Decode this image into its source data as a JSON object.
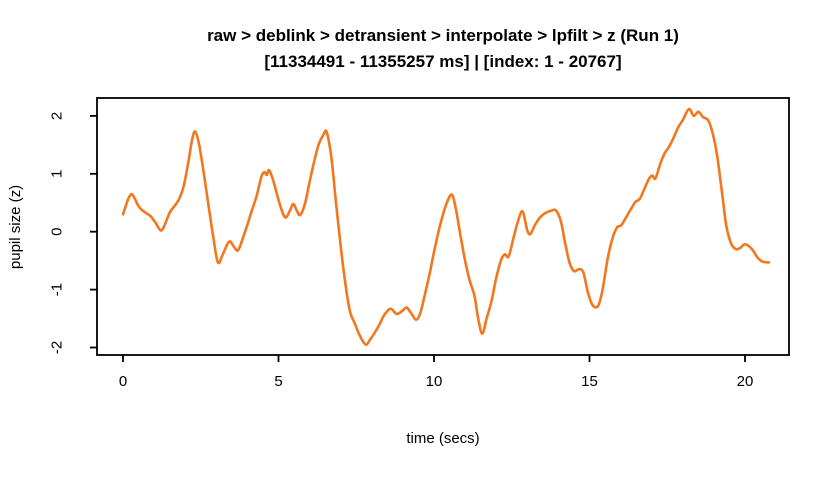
{
  "chart_data": {
    "type": "line",
    "title": "raw > deblink > detransient > interpolate > lpfilt > z (Run 1)",
    "subtitle": "[11334491 - 11355257 ms] | [index: 1 - 20767]",
    "xlabel": "time (secs)",
    "ylabel": "pupil size (z)",
    "x_ticks": [
      0,
      5,
      10,
      15,
      20
    ],
    "y_ticks": [
      -2,
      -1,
      0,
      1,
      2
    ],
    "xlim": [
      -0.84,
      21.41
    ],
    "ylim": [
      -2.13,
      2.31
    ],
    "grid": false,
    "legend": "none",
    "line_color": "#F2771E",
    "axis_color": "#000000",
    "background_color": "#FFFFFF",
    "series": [
      {
        "name": "pupil_size_z",
        "points": [
          [
            0.0,
            0.3
          ],
          [
            0.1,
            0.46
          ],
          [
            0.18,
            0.58
          ],
          [
            0.28,
            0.65
          ],
          [
            0.38,
            0.57
          ],
          [
            0.5,
            0.44
          ],
          [
            0.62,
            0.37
          ],
          [
            0.75,
            0.32
          ],
          [
            0.9,
            0.26
          ],
          [
            1.05,
            0.15
          ],
          [
            1.22,
            0.02
          ],
          [
            1.35,
            0.13
          ],
          [
            1.5,
            0.33
          ],
          [
            1.65,
            0.44
          ],
          [
            1.8,
            0.56
          ],
          [
            1.95,
            0.78
          ],
          [
            2.1,
            1.2
          ],
          [
            2.22,
            1.58
          ],
          [
            2.32,
            1.73
          ],
          [
            2.45,
            1.5
          ],
          [
            2.6,
            1.0
          ],
          [
            2.75,
            0.45
          ],
          [
            2.9,
            -0.08
          ],
          [
            3.05,
            -0.53
          ],
          [
            3.2,
            -0.4
          ],
          [
            3.35,
            -0.22
          ],
          [
            3.45,
            -0.17
          ],
          [
            3.58,
            -0.27
          ],
          [
            3.7,
            -0.32
          ],
          [
            3.85,
            -0.12
          ],
          [
            4.0,
            0.12
          ],
          [
            4.15,
            0.38
          ],
          [
            4.3,
            0.62
          ],
          [
            4.45,
            0.95
          ],
          [
            4.55,
            1.03
          ],
          [
            4.62,
            0.98
          ],
          [
            4.7,
            1.06
          ],
          [
            4.85,
            0.85
          ],
          [
            5.0,
            0.55
          ],
          [
            5.15,
            0.3
          ],
          [
            5.25,
            0.25
          ],
          [
            5.38,
            0.38
          ],
          [
            5.48,
            0.48
          ],
          [
            5.6,
            0.35
          ],
          [
            5.7,
            0.29
          ],
          [
            5.85,
            0.48
          ],
          [
            6.0,
            0.86
          ],
          [
            6.15,
            1.22
          ],
          [
            6.3,
            1.52
          ],
          [
            6.45,
            1.68
          ],
          [
            6.55,
            1.72
          ],
          [
            6.7,
            1.28
          ],
          [
            6.85,
            0.5
          ],
          [
            7.0,
            -0.25
          ],
          [
            7.15,
            -0.9
          ],
          [
            7.3,
            -1.38
          ],
          [
            7.45,
            -1.58
          ],
          [
            7.6,
            -1.78
          ],
          [
            7.8,
            -1.95
          ],
          [
            7.95,
            -1.86
          ],
          [
            8.1,
            -1.74
          ],
          [
            8.25,
            -1.6
          ],
          [
            8.4,
            -1.44
          ],
          [
            8.6,
            -1.33
          ],
          [
            8.8,
            -1.42
          ],
          [
            9.0,
            -1.36
          ],
          [
            9.12,
            -1.31
          ],
          [
            9.28,
            -1.42
          ],
          [
            9.42,
            -1.52
          ],
          [
            9.55,
            -1.42
          ],
          [
            9.7,
            -1.1
          ],
          [
            9.87,
            -0.7
          ],
          [
            10.0,
            -0.35
          ],
          [
            10.2,
            0.12
          ],
          [
            10.4,
            0.48
          ],
          [
            10.57,
            0.64
          ],
          [
            10.7,
            0.4
          ],
          [
            10.85,
            -0.06
          ],
          [
            11.0,
            -0.5
          ],
          [
            11.15,
            -0.85
          ],
          [
            11.3,
            -1.1
          ],
          [
            11.42,
            -1.5
          ],
          [
            11.55,
            -1.76
          ],
          [
            11.7,
            -1.48
          ],
          [
            11.85,
            -1.2
          ],
          [
            12.0,
            -0.8
          ],
          [
            12.15,
            -0.5
          ],
          [
            12.28,
            -0.39
          ],
          [
            12.4,
            -0.43
          ],
          [
            12.55,
            -0.12
          ],
          [
            12.7,
            0.18
          ],
          [
            12.85,
            0.35
          ],
          [
            13.0,
            0.02
          ],
          [
            13.1,
            -0.04
          ],
          [
            13.25,
            0.12
          ],
          [
            13.4,
            0.24
          ],
          [
            13.57,
            0.32
          ],
          [
            13.75,
            0.36
          ],
          [
            13.92,
            0.37
          ],
          [
            14.08,
            0.18
          ],
          [
            14.2,
            -0.15
          ],
          [
            14.35,
            -0.52
          ],
          [
            14.5,
            -0.68
          ],
          [
            14.65,
            -0.65
          ],
          [
            14.8,
            -0.7
          ],
          [
            14.95,
            -1.05
          ],
          [
            15.1,
            -1.27
          ],
          [
            15.28,
            -1.28
          ],
          [
            15.42,
            -1.0
          ],
          [
            15.58,
            -0.48
          ],
          [
            15.72,
            -0.15
          ],
          [
            15.88,
            0.07
          ],
          [
            16.02,
            0.11
          ],
          [
            16.18,
            0.25
          ],
          [
            16.32,
            0.38
          ],
          [
            16.47,
            0.51
          ],
          [
            16.62,
            0.57
          ],
          [
            16.78,
            0.76
          ],
          [
            16.92,
            0.92
          ],
          [
            17.02,
            0.97
          ],
          [
            17.12,
            0.92
          ],
          [
            17.28,
            1.18
          ],
          [
            17.42,
            1.36
          ],
          [
            17.55,
            1.46
          ],
          [
            17.7,
            1.62
          ],
          [
            17.85,
            1.8
          ],
          [
            18.0,
            1.93
          ],
          [
            18.2,
            2.12
          ],
          [
            18.35,
            2.0
          ],
          [
            18.5,
            2.07
          ],
          [
            18.65,
            1.98
          ],
          [
            18.82,
            1.92
          ],
          [
            18.97,
            1.68
          ],
          [
            19.1,
            1.33
          ],
          [
            19.25,
            0.72
          ],
          [
            19.4,
            0.1
          ],
          [
            19.55,
            -0.2
          ],
          [
            19.7,
            -0.3
          ],
          [
            19.85,
            -0.28
          ],
          [
            19.97,
            -0.22
          ],
          [
            20.1,
            -0.24
          ],
          [
            20.25,
            -0.32
          ],
          [
            20.42,
            -0.46
          ],
          [
            20.58,
            -0.52
          ],
          [
            20.77,
            -0.53
          ]
        ]
      }
    ]
  }
}
